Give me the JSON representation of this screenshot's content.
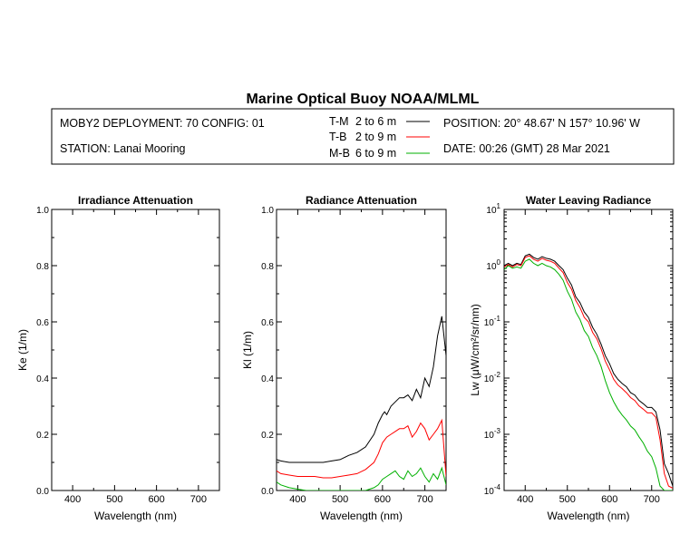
{
  "header": {
    "title": "Marine Optical Buoy NOAA/MLML",
    "deployment": "MOBY2 DEPLOYMENT: 70 CONFIG: 01",
    "station": "STATION: Lanai Mooring",
    "position": "POSITION: 20° 48.67' N   157° 10.96' W",
    "date": "DATE: 00:26 (GMT) 28 Mar 2021"
  },
  "colors": {
    "tm": "#000000",
    "tb": "#ff0000",
    "mb": "#00b000"
  },
  "legend": [
    {
      "code": "T-M",
      "range": "2 to 6  m",
      "color": "#000000"
    },
    {
      "code": "T-B",
      "range": "2 to 9  m",
      "color": "#ff0000"
    },
    {
      "code": "M-B",
      "range": "6 to 9  m",
      "color": "#00b000"
    }
  ],
  "chart_data": [
    {
      "type": "line",
      "title": "Irradiance Attenuation",
      "xlabel": "Wavelength (nm)",
      "ylabel": "Ke  (1/m)",
      "xlim": [
        350,
        750
      ],
      "ylim": [
        0,
        1
      ],
      "xticks": [
        "400",
        "500",
        "600",
        "700"
      ],
      "yticks": [
        "0.0",
        "0.2",
        "0.4",
        "0.6",
        "0.8",
        "1.0"
      ],
      "series": []
    },
    {
      "type": "line",
      "title": "Radiance Attenuation",
      "xlabel": "Wavelength (nm)",
      "ylabel": "Kl  (1/m)",
      "xlim": [
        350,
        750
      ],
      "ylim": [
        0,
        1
      ],
      "xticks": [
        "400",
        "500",
        "600",
        "700"
      ],
      "yticks": [
        "0.0",
        "0.2",
        "0.4",
        "0.6",
        "0.8",
        "1.0"
      ],
      "series": [
        {
          "name": "T-M",
          "color": "#000000",
          "x": [
            350,
            360,
            380,
            400,
            420,
            440,
            460,
            480,
            500,
            520,
            540,
            560,
            580,
            590,
            600,
            605,
            610,
            620,
            640,
            650,
            660,
            670,
            680,
            690,
            700,
            710,
            720,
            730,
            740,
            750
          ],
          "y": [
            0.11,
            0.105,
            0.1,
            0.1,
            0.1,
            0.1,
            0.1,
            0.105,
            0.11,
            0.125,
            0.135,
            0.155,
            0.2,
            0.24,
            0.27,
            0.28,
            0.27,
            0.3,
            0.33,
            0.33,
            0.34,
            0.32,
            0.36,
            0.33,
            0.4,
            0.37,
            0.44,
            0.55,
            0.62,
            0.48
          ]
        },
        {
          "name": "T-B",
          "color": "#ff0000",
          "x": [
            350,
            360,
            380,
            400,
            420,
            440,
            460,
            480,
            500,
            520,
            540,
            560,
            580,
            590,
            600,
            610,
            620,
            630,
            640,
            650,
            660,
            670,
            680,
            690,
            700,
            710,
            720,
            730,
            740,
            750
          ],
          "y": [
            0.07,
            0.06,
            0.055,
            0.05,
            0.05,
            0.05,
            0.045,
            0.045,
            0.05,
            0.055,
            0.06,
            0.075,
            0.1,
            0.13,
            0.17,
            0.19,
            0.2,
            0.21,
            0.22,
            0.22,
            0.23,
            0.19,
            0.21,
            0.24,
            0.22,
            0.18,
            0.2,
            0.22,
            0.25,
            0.05
          ]
        },
        {
          "name": "M-B",
          "color": "#00b000",
          "x": [
            350,
            360,
            380,
            400,
            420,
            440,
            460,
            480,
            500,
            520,
            540,
            560,
            580,
            590,
            600,
            610,
            620,
            630,
            640,
            650,
            660,
            670,
            680,
            690,
            700,
            710,
            720,
            730,
            740,
            750
          ],
          "y": [
            0.03,
            0.02,
            0.01,
            0.005,
            0.0,
            0.0,
            0.0,
            0.0,
            0.0,
            0.0,
            0.0,
            0.0,
            0.01,
            0.02,
            0.04,
            0.05,
            0.06,
            0.07,
            0.05,
            0.04,
            0.07,
            0.05,
            0.06,
            0.08,
            0.05,
            0.03,
            0.06,
            0.04,
            0.08,
            0.02
          ]
        }
      ]
    },
    {
      "type": "line",
      "title": "Water Leaving Radiance",
      "xlabel": "Wavelength (nm)",
      "ylabel": "Lw  (μW/cm²/sr/nm)",
      "xlim": [
        350,
        750
      ],
      "ylim_log10": [
        -4,
        1
      ],
      "xticks": [
        "400",
        "500",
        "600",
        "700"
      ],
      "ytick_labels": [
        {
          "base": "10",
          "exp": "1"
        },
        {
          "base": "10",
          "exp": "0"
        },
        {
          "base": "10",
          "exp": "-1"
        },
        {
          "base": "10",
          "exp": "-2"
        },
        {
          "base": "10",
          "exp": "-3"
        },
        {
          "base": "10",
          "exp": "-4"
        }
      ],
      "series": [
        {
          "name": "T-M",
          "color": "#000000",
          "x": [
            350,
            360,
            370,
            380,
            390,
            400,
            410,
            420,
            430,
            440,
            450,
            460,
            470,
            480,
            490,
            500,
            510,
            520,
            530,
            540,
            550,
            560,
            570,
            580,
            590,
            600,
            610,
            620,
            630,
            640,
            650,
            660,
            670,
            680,
            690,
            700,
            710,
            720,
            730,
            740,
            750
          ],
          "y": [
            1.0,
            1.1,
            1.0,
            1.1,
            1.05,
            1.5,
            1.6,
            1.4,
            1.3,
            1.45,
            1.35,
            1.3,
            1.2,
            1.0,
            0.85,
            0.6,
            0.45,
            0.28,
            0.22,
            0.15,
            0.12,
            0.08,
            0.06,
            0.04,
            0.025,
            0.018,
            0.012,
            0.0095,
            0.008,
            0.007,
            0.0055,
            0.005,
            0.004,
            0.0035,
            0.003,
            0.003,
            0.0025,
            0.0012,
            0.0003,
            0.0002,
            0.00012
          ]
        },
        {
          "name": "T-B",
          "color": "#ff0000",
          "x": [
            350,
            360,
            370,
            380,
            390,
            400,
            410,
            420,
            430,
            440,
            450,
            460,
            470,
            480,
            490,
            500,
            510,
            520,
            530,
            540,
            550,
            560,
            570,
            580,
            590,
            600,
            610,
            620,
            630,
            640,
            650,
            660,
            670,
            680,
            690,
            700,
            710,
            720,
            730,
            740,
            750
          ],
          "y": [
            0.95,
            1.05,
            0.95,
            1.05,
            1.0,
            1.4,
            1.5,
            1.3,
            1.2,
            1.35,
            1.25,
            1.2,
            1.1,
            0.9,
            0.75,
            0.5,
            0.38,
            0.24,
            0.18,
            0.12,
            0.1,
            0.065,
            0.05,
            0.033,
            0.02,
            0.014,
            0.0095,
            0.0075,
            0.0065,
            0.0055,
            0.0045,
            0.004,
            0.0032,
            0.0028,
            0.0024,
            0.0024,
            0.002,
            0.0008,
            0.0002,
            0.00012,
            0.00011
          ]
        },
        {
          "name": "M-B",
          "color": "#00b000",
          "x": [
            350,
            360,
            370,
            380,
            390,
            400,
            410,
            420,
            430,
            440,
            450,
            460,
            470,
            480,
            490,
            500,
            510,
            520,
            530,
            540,
            550,
            560,
            570,
            580,
            590,
            600,
            610,
            620,
            630,
            640,
            650,
            660,
            670,
            680,
            690,
            700,
            710,
            720,
            730,
            740,
            750
          ],
          "y": [
            0.85,
            1.0,
            0.9,
            0.95,
            0.9,
            1.2,
            1.3,
            1.1,
            1.0,
            1.1,
            1.0,
            0.95,
            0.85,
            0.7,
            0.55,
            0.35,
            0.25,
            0.15,
            0.11,
            0.07,
            0.055,
            0.035,
            0.025,
            0.016,
            0.009,
            0.0055,
            0.0038,
            0.0028,
            0.0022,
            0.0018,
            0.0014,
            0.0012,
            0.0009,
            0.0007,
            0.0005,
            0.0004,
            0.00025,
            0.00012,
            0.0001,
            0.0001,
            0.0001
          ]
        }
      ]
    }
  ]
}
